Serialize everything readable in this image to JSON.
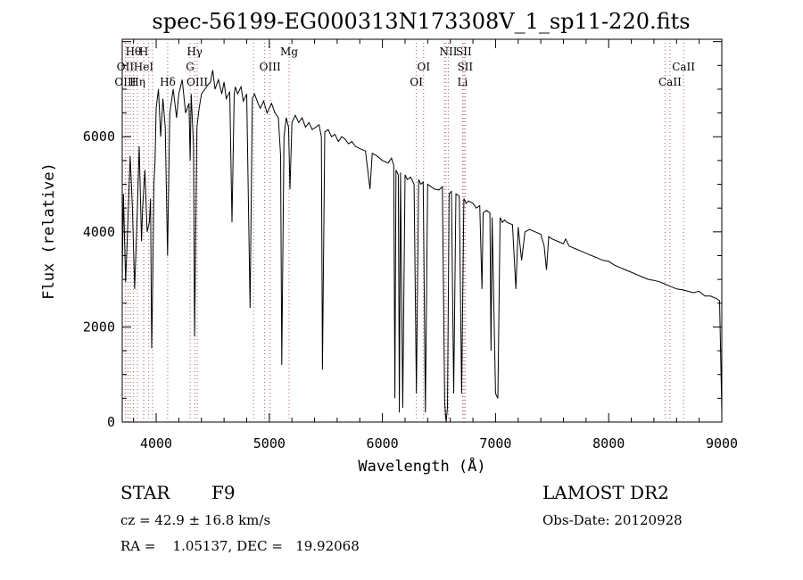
{
  "chart_data": {
    "type": "line",
    "title": "spec-56199-EG000313N173308V_1_sp11-220.fits",
    "xlabel": "Wavelength (Å)",
    "ylabel": "Flux (relative)",
    "xlim": [
      3700,
      9000
    ],
    "ylim": [
      0,
      8050
    ],
    "xticks": [
      4000,
      5000,
      6000,
      7000,
      8000,
      9000
    ],
    "yticks": [
      0,
      2000,
      4000,
      6000
    ],
    "grid": false,
    "series": [
      {
        "points": [
          [
            3700,
            3000
          ],
          [
            3710,
            4800
          ],
          [
            3730,
            2950
          ],
          [
            3750,
            4200
          ],
          [
            3770,
            5600
          ],
          [
            3790,
            4500
          ],
          [
            3810,
            2800
          ],
          [
            3830,
            4200
          ],
          [
            3850,
            5800
          ],
          [
            3870,
            3800
          ],
          [
            3880,
            4500
          ],
          [
            3900,
            5300
          ],
          [
            3920,
            4000
          ],
          [
            3940,
            4200
          ],
          [
            3950,
            4700
          ],
          [
            3960,
            1550
          ],
          [
            3970,
            3000
          ],
          [
            3980,
            5000
          ],
          [
            3990,
            5500
          ],
          [
            4000,
            6600
          ],
          [
            4020,
            7000
          ],
          [
            4040,
            6000
          ],
          [
            4060,
            6800
          ],
          [
            4080,
            6200
          ],
          [
            4101,
            3500
          ],
          [
            4120,
            6500
          ],
          [
            4150,
            7000
          ],
          [
            4180,
            6400
          ],
          [
            4200,
            6900
          ],
          [
            4230,
            7200
          ],
          [
            4260,
            6500
          ],
          [
            4290,
            6700
          ],
          [
            4300,
            5500
          ],
          [
            4310,
            6900
          ],
          [
            4330,
            5800
          ],
          [
            4340,
            1800
          ],
          [
            4360,
            6200
          ],
          [
            4380,
            6600
          ],
          [
            4400,
            6900
          ],
          [
            4430,
            7000
          ],
          [
            4460,
            7100
          ],
          [
            4480,
            7150
          ],
          [
            4500,
            7400
          ],
          [
            4520,
            7000
          ],
          [
            4550,
            7200
          ],
          [
            4580,
            6900
          ],
          [
            4600,
            7150
          ],
          [
            4620,
            6800
          ],
          [
            4650,
            6950
          ],
          [
            4670,
            4200
          ],
          [
            4690,
            6900
          ],
          [
            4700,
            7050
          ],
          [
            4720,
            6900
          ],
          [
            4750,
            7050
          ],
          [
            4770,
            6750
          ],
          [
            4800,
            6900
          ],
          [
            4830,
            2400
          ],
          [
            4850,
            6800
          ],
          [
            4870,
            6900
          ],
          [
            4900,
            6700
          ],
          [
            4920,
            6600
          ],
          [
            4950,
            6750
          ],
          [
            4980,
            6500
          ],
          [
            5000,
            6600
          ],
          [
            5020,
            6700
          ],
          [
            5050,
            6500
          ],
          [
            5080,
            6400
          ],
          [
            5100,
            5600
          ],
          [
            5110,
            1200
          ],
          [
            5130,
            6000
          ],
          [
            5150,
            6400
          ],
          [
            5170,
            6200
          ],
          [
            5183,
            4900
          ],
          [
            5200,
            6300
          ],
          [
            5230,
            6450
          ],
          [
            5260,
            6300
          ],
          [
            5290,
            6400
          ],
          [
            5320,
            6200
          ],
          [
            5350,
            6300
          ],
          [
            5380,
            6150
          ],
          [
            5410,
            6200
          ],
          [
            5440,
            6250
          ],
          [
            5460,
            6000
          ],
          [
            5470,
            1100
          ],
          [
            5490,
            6100
          ],
          [
            5520,
            6150
          ],
          [
            5550,
            6000
          ],
          [
            5580,
            6050
          ],
          [
            5610,
            5900
          ],
          [
            5640,
            6000
          ],
          [
            5670,
            5950
          ],
          [
            5700,
            5850
          ],
          [
            5730,
            5900
          ],
          [
            5760,
            5800
          ],
          [
            5800,
            5750
          ],
          [
            5850,
            5700
          ],
          [
            5890,
            4900
          ],
          [
            5910,
            5650
          ],
          [
            5950,
            5600
          ],
          [
            6000,
            5500
          ],
          [
            6050,
            5450
          ],
          [
            6080,
            5550
          ],
          [
            6100,
            5400
          ],
          [
            6110,
            500
          ],
          [
            6120,
            5300
          ],
          [
            6140,
            5200
          ],
          [
            6150,
            200
          ],
          [
            6160,
            5250
          ],
          [
            6180,
            300
          ],
          [
            6200,
            5200
          ],
          [
            6220,
            5100
          ],
          [
            6250,
            5150
          ],
          [
            6280,
            5000
          ],
          [
            6300,
            600
          ],
          [
            6320,
            5100
          ],
          [
            6340,
            5000
          ],
          [
            6360,
            5050
          ],
          [
            6380,
            200
          ],
          [
            6400,
            5000
          ],
          [
            6430,
            4950
          ],
          [
            6460,
            4900
          ],
          [
            6500,
            4880
          ],
          [
            6530,
            4950
          ],
          [
            6550,
            400
          ],
          [
            6563,
            0
          ],
          [
            6575,
            300
          ],
          [
            6590,
            4800
          ],
          [
            6610,
            4850
          ],
          [
            6630,
            600
          ],
          [
            6650,
            4800
          ],
          [
            6680,
            4750
          ],
          [
            6700,
            600
          ],
          [
            6720,
            4700
          ],
          [
            6740,
            4600
          ],
          [
            6760,
            4650
          ],
          [
            6800,
            4600
          ],
          [
            6830,
            4500
          ],
          [
            6860,
            4550
          ],
          [
            6880,
            2800
          ],
          [
            6890,
            4400
          ],
          [
            6920,
            4450
          ],
          [
            6950,
            4400
          ],
          [
            6960,
            1500
          ],
          [
            6970,
            4300
          ],
          [
            7000,
            600
          ],
          [
            7020,
            500
          ],
          [
            7040,
            4300
          ],
          [
            7060,
            4200
          ],
          [
            7080,
            4250
          ],
          [
            7100,
            4200
          ],
          [
            7150,
            4150
          ],
          [
            7180,
            2800
          ],
          [
            7200,
            4100
          ],
          [
            7230,
            3400
          ],
          [
            7260,
            4000
          ],
          [
            7300,
            4050
          ],
          [
            7350,
            4000
          ],
          [
            7400,
            3950
          ],
          [
            7430,
            3700
          ],
          [
            7450,
            3200
          ],
          [
            7470,
            3900
          ],
          [
            7500,
            3850
          ],
          [
            7550,
            3800
          ],
          [
            7600,
            3750
          ],
          [
            7620,
            3850
          ],
          [
            7650,
            3700
          ],
          [
            7700,
            3650
          ],
          [
            7750,
            3600
          ],
          [
            7800,
            3550
          ],
          [
            7850,
            3500
          ],
          [
            7900,
            3450
          ],
          [
            7950,
            3400
          ],
          [
            8000,
            3380
          ],
          [
            8050,
            3300
          ],
          [
            8100,
            3250
          ],
          [
            8150,
            3200
          ],
          [
            8200,
            3150
          ],
          [
            8250,
            3100
          ],
          [
            8300,
            3050
          ],
          [
            8350,
            3000
          ],
          [
            8400,
            2980
          ],
          [
            8450,
            2950
          ],
          [
            8500,
            2900
          ],
          [
            8550,
            2850
          ],
          [
            8600,
            2800
          ],
          [
            8650,
            2780
          ],
          [
            8700,
            2750
          ],
          [
            8750,
            2720
          ],
          [
            8800,
            2750
          ],
          [
            8850,
            2650
          ],
          [
            8900,
            2650
          ],
          [
            8950,
            2600
          ],
          [
            8980,
            2550
          ],
          [
            9000,
            200
          ]
        ]
      }
    ],
    "line_markers": [
      {
        "label": "Hθ",
        "wavelength": 3798,
        "row": 0
      },
      {
        "label": "H",
        "wavelength": 3890,
        "row": 0
      },
      {
        "label": "Hγ",
        "wavelength": 4340,
        "row": 0
      },
      {
        "label": "Mg",
        "wavelength": 5175,
        "row": 0
      },
      {
        "label": "NII",
        "wavelength": 6583,
        "row": 0
      },
      {
        "label": "SII",
        "wavelength": 6720,
        "row": 0
      },
      {
        "label": "OII",
        "wavelength": 3727,
        "row": 1
      },
      {
        "label": "HeI",
        "wavelength": 3889,
        "row": 1
      },
      {
        "label": "G",
        "wavelength": 4300,
        "row": 1
      },
      {
        "label": "OIII",
        "wavelength": 5007,
        "row": 1
      },
      {
        "label": "OI",
        "wavelength": 6364,
        "row": 1
      },
      {
        "label": "SII",
        "wavelength": 6731,
        "row": 1
      },
      {
        "label": "CaII",
        "wavelength": 8662,
        "row": 1
      },
      {
        "label": "OIII",
        "wavelength": 3727,
        "row": 2
      },
      {
        "label": "Hη",
        "wavelength": 3835,
        "row": 2
      },
      {
        "label": "Hδ",
        "wavelength": 4102,
        "row": 2
      },
      {
        "label": "OIII",
        "wavelength": 4363,
        "row": 2
      },
      {
        "label": "OI",
        "wavelength": 6300,
        "row": 2
      },
      {
        "label": "Li",
        "wavelength": 6708,
        "row": 2
      },
      {
        "label": "CaII",
        "wavelength": 8542,
        "row": 2
      }
    ],
    "extra_dotted_lines": [
      3750,
      3771,
      3934,
      3968,
      4861,
      4959,
      6548,
      6563,
      8498
    ]
  },
  "info": {
    "object_class": "STAR",
    "subclass": "F9",
    "survey": "LAMOST DR2",
    "cz": "cz = 42.9 ± 16.8 km/s",
    "obs_date": "Obs-Date: 20120928",
    "coords": "RA =    1.05137, DEC =   19.92068"
  },
  "colors": {
    "axis": "#000000",
    "spectrum": "#000000",
    "marker_line": "#a06060"
  }
}
